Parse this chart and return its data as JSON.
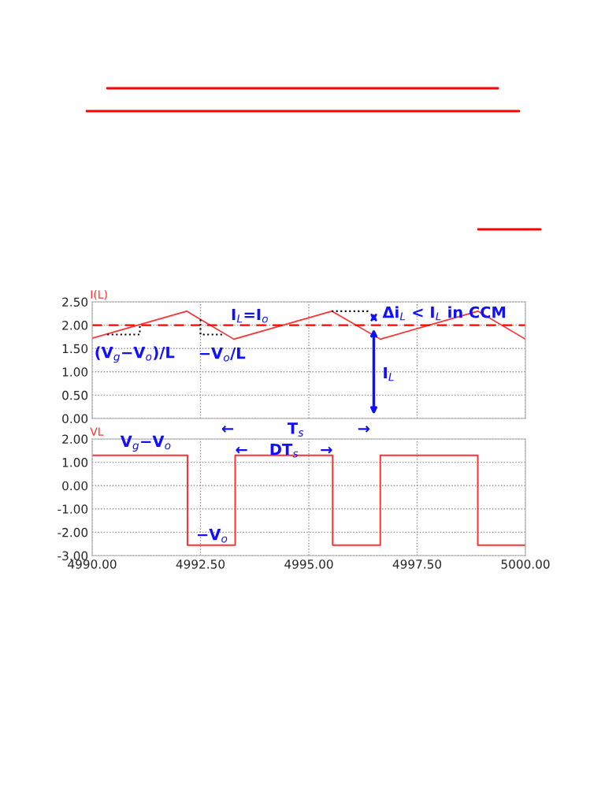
{
  "chart_data": [
    {
      "type": "line",
      "ylabel": "I(L)",
      "xlim": [
        4990,
        5000
      ],
      "ylim": [
        0,
        2.5
      ],
      "xticks": [
        {
          "value": 4990,
          "label": null
        },
        {
          "value": 4992.5,
          "label": null
        },
        {
          "value": 4995,
          "label": null
        },
        {
          "value": 4997.5,
          "label": null
        },
        {
          "value": 5000,
          "label": null
        }
      ],
      "yticks": [
        {
          "value": 0,
          "label": "0.00"
        },
        {
          "value": 0.5,
          "label": "0.50"
        },
        {
          "value": 1,
          "label": "1.00"
        },
        {
          "value": 1.5,
          "label": "1.50"
        },
        {
          "value": 2,
          "label": "2.00"
        },
        {
          "value": 2.5,
          "label": "2.50"
        }
      ],
      "tick_labels": "y",
      "grid": true,
      "series": [
        {
          "color": "#ff3030",
          "x": [
            4990,
            4992.18,
            4993.27,
            4995.53,
            4996.65,
            4998.9,
            5000
          ],
          "values": [
            1.72,
            2.3,
            1.7,
            2.3,
            1.7,
            2.3,
            1.7
          ]
        }
      ],
      "ref_lines": [
        {
          "axis": "y",
          "value": 2,
          "color": "#ff0000",
          "line_style": "dashed"
        }
      ],
      "annotations": [
        "I$_{L}$=I$_{o}$",
        {
          "text": "Δi$_{L}$ < I$_{L}$ in CCM",
          "x": 4995.53,
          "y": 2.3
        },
        {
          "text": "(V$_{g}$−V$_{o}$)/L",
          "x": 4991.1,
          "y": 2.0
        },
        {
          "text": "−V$_{o}$/L",
          "x": 4992.5,
          "y": 2.12
        },
        "I$_{L}$"
      ]
    },
    {
      "type": "step",
      "ylabel": "VL",
      "xlim": [
        4990,
        5000
      ],
      "ylim": [
        -3,
        2
      ],
      "xticks": [
        {
          "value": 4990,
          "label": "4990.00"
        },
        {
          "value": 4992.5,
          "label": "4992.50"
        },
        {
          "value": 4995,
          "label": "4995.00"
        },
        {
          "value": 4997.5,
          "label": "4997.50"
        },
        {
          "value": 5000,
          "label": "5000.00"
        }
      ],
      "yticks": [
        {
          "value": -3,
          "label": "-3.00"
        },
        {
          "value": -2,
          "label": "-2.00"
        },
        {
          "value": -1,
          "label": "-1.00"
        },
        {
          "value": 0,
          "label": "0.00"
        },
        {
          "value": 1,
          "label": "1.00"
        },
        {
          "value": 2,
          "label": "2.00"
        }
      ],
      "grid": true,
      "series": [
        {
          "color": "#ff3030",
          "x": [
            4990,
            4992.2,
            4993.3,
            4995.55,
            4996.65,
            4998.9,
            5000
          ],
          "values": [
            1.3,
            -2.55,
            1.3,
            -2.55,
            1.3,
            -2.55,
            -2.55
          ]
        }
      ],
      "annotations": [
        "←          T$_{s}$          →",
        "V$_{g}$−V$_{o}$",
        "−V$_{o}$",
        "←    DT$_{s}$    →"
      ]
    }
  ]
}
